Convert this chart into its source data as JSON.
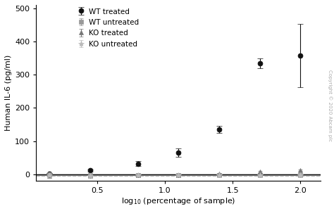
{
  "wt_treated_x": [
    0.15,
    0.45,
    0.8,
    1.1,
    1.4,
    1.7,
    2.0
  ],
  "wt_treated_y": [
    2,
    12,
    32,
    65,
    135,
    335,
    358
  ],
  "wt_treated_yerr": [
    1,
    3,
    8,
    12,
    10,
    15,
    95
  ],
  "wt_untreated_x": [
    0.15,
    0.45,
    0.8,
    1.1,
    1.4,
    1.7,
    2.0
  ],
  "wt_untreated_y": [
    0,
    -2,
    -2,
    -2,
    -2,
    -2,
    -2
  ],
  "wt_untreated_yerr": [
    0.5,
    0.5,
    0.5,
    0.5,
    0.5,
    0.5,
    0.5
  ],
  "ko_treated_x": [
    0.15,
    0.45,
    0.8,
    1.1,
    1.4,
    1.7,
    2.0
  ],
  "ko_treated_y": [
    -5,
    -5,
    -3,
    -2,
    2,
    8,
    12
  ],
  "ko_treated_yerr": [
    0.5,
    0.5,
    0.5,
    0.5,
    1,
    2,
    2
  ],
  "ko_untreated_x": [
    0.15,
    0.45,
    0.8,
    1.1,
    1.4,
    1.7,
    2.0
  ],
  "ko_untreated_y": [
    -3,
    -4,
    -3,
    -3,
    -3,
    -3,
    -3
  ],
  "ko_untreated_yerr": [
    0.5,
    0.5,
    0.5,
    0.5,
    0.5,
    0.5,
    0.5
  ],
  "wt_treated_color": "#111111",
  "wt_untreated_color": "#999999",
  "ko_treated_color": "#777777",
  "ko_untreated_color": "#bbbbbb",
  "ylabel": "Human IL-6 (pg/ml)",
  "xlabel": "log$_{10}$ (percentage of sample)",
  "ylim": [
    -20,
    510
  ],
  "xlim": [
    0.05,
    2.15
  ],
  "yticks": [
    0,
    100,
    200,
    300,
    400,
    500
  ],
  "xticks": [
    0.5,
    1.0,
    1.5,
    2.0
  ],
  "copyright": "Copyright © 2020 Abcam plc",
  "sigmoid_color": "#111111",
  "wt_line_color": "#777777",
  "ko_line_color": "#999999",
  "ko_untr_line_color": "#bbbbbb",
  "background_color": "#ffffff",
  "legend_labels": [
    "WT treated",
    "WT untreated",
    "KO treated",
    "KO untreated"
  ]
}
